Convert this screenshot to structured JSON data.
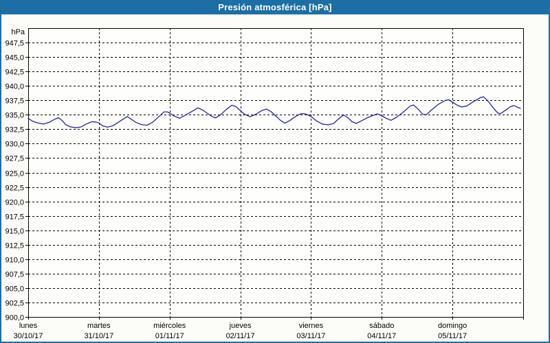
{
  "window": {
    "title": "Presión atmosférica [hPa]"
  },
  "colors": {
    "titlebar_bg": "#1c6ea5",
    "titlebar_text": "#ffffff",
    "frame_border": "#1c6ea5",
    "page_bg": "#fcfdf8",
    "plot_bg": "#fefefc",
    "plot_border": "#000000",
    "grid": "#000000",
    "tick": "#000000",
    "label_text": "#000000",
    "series_line": "#2323a5"
  },
  "chart_data": {
    "type": "line",
    "title": "Presión atmosférica [hPa]",
    "ylabel": "hPa",
    "xlabel": "",
    "ylim": [
      900,
      950
    ],
    "y_tick_step": 2.5,
    "grid": "dashed",
    "legend_position": "none",
    "y_tick_labels": [
      "947,5",
      "945,0",
      "942,5",
      "940,0",
      "937,5",
      "935,0",
      "932,5",
      "930,0",
      "927,5",
      "925,0",
      "922,5",
      "920,0",
      "917,5",
      "915,0",
      "912,5",
      "910,0",
      "907,5",
      "905,0",
      "902,5",
      "900,0"
    ],
    "y_tick_values": [
      947.5,
      945.0,
      942.5,
      940.0,
      937.5,
      935.0,
      932.5,
      930.0,
      927.5,
      925.0,
      922.5,
      920.0,
      917.5,
      915.0,
      912.5,
      910.0,
      907.5,
      905.0,
      902.5,
      900.0
    ],
    "x_days": [
      {
        "name": "lunes",
        "date": "30/10/17"
      },
      {
        "name": "martes",
        "date": "31/10/17"
      },
      {
        "name": "miércoles",
        "date": "01/11/17"
      },
      {
        "name": "jueves",
        "date": "02/11/17"
      },
      {
        "name": "viernes",
        "date": "03/11/17"
      },
      {
        "name": "sábado",
        "date": "04/11/17"
      },
      {
        "name": "domingo",
        "date": "05/11/17"
      }
    ],
    "series": [
      {
        "name": "Presión atmosférica",
        "unit": "hPa",
        "points": [
          [
            0.0,
            934.4
          ],
          [
            0.06,
            933.9
          ],
          [
            0.13,
            933.6
          ],
          [
            0.22,
            933.4
          ],
          [
            0.3,
            933.7
          ],
          [
            0.37,
            934.2
          ],
          [
            0.43,
            934.5
          ],
          [
            0.48,
            934.0
          ],
          [
            0.53,
            933.3
          ],
          [
            0.6,
            932.9
          ],
          [
            0.68,
            932.75
          ],
          [
            0.75,
            932.9
          ],
          [
            0.82,
            933.4
          ],
          [
            0.9,
            933.8
          ],
          [
            0.95,
            933.75
          ],
          [
            1.0,
            933.6
          ],
          [
            1.05,
            933.1
          ],
          [
            1.12,
            932.85
          ],
          [
            1.2,
            933.1
          ],
          [
            1.3,
            933.9
          ],
          [
            1.4,
            934.7
          ],
          [
            1.46,
            934.2
          ],
          [
            1.52,
            933.7
          ],
          [
            1.6,
            933.3
          ],
          [
            1.68,
            933.2
          ],
          [
            1.76,
            933.7
          ],
          [
            1.84,
            934.6
          ],
          [
            1.92,
            935.5
          ],
          [
            1.97,
            935.5
          ],
          [
            2.0,
            935.3
          ],
          [
            2.06,
            934.8
          ],
          [
            2.14,
            934.4
          ],
          [
            2.22,
            934.9
          ],
          [
            2.32,
            935.6
          ],
          [
            2.4,
            936.2
          ],
          [
            2.47,
            935.8
          ],
          [
            2.54,
            935.2
          ],
          [
            2.6,
            934.7
          ],
          [
            2.65,
            934.45
          ],
          [
            2.72,
            935.0
          ],
          [
            2.8,
            935.9
          ],
          [
            2.88,
            936.65
          ],
          [
            2.94,
            936.4
          ],
          [
            3.0,
            935.7
          ],
          [
            3.06,
            935.1
          ],
          [
            3.14,
            934.65
          ],
          [
            3.22,
            935.1
          ],
          [
            3.3,
            935.7
          ],
          [
            3.37,
            936.0
          ],
          [
            3.44,
            935.5
          ],
          [
            3.5,
            934.8
          ],
          [
            3.57,
            934.0
          ],
          [
            3.63,
            933.55
          ],
          [
            3.7,
            934.0
          ],
          [
            3.78,
            934.7
          ],
          [
            3.86,
            935.2
          ],
          [
            3.92,
            935.15
          ],
          [
            4.0,
            934.7
          ],
          [
            4.08,
            933.9
          ],
          [
            4.16,
            933.4
          ],
          [
            4.24,
            933.25
          ],
          [
            4.32,
            933.5
          ],
          [
            4.4,
            934.4
          ],
          [
            4.46,
            934.95
          ],
          [
            4.52,
            934.5
          ],
          [
            4.58,
            933.8
          ],
          [
            4.64,
            933.5
          ],
          [
            4.72,
            934.0
          ],
          [
            4.8,
            934.5
          ],
          [
            4.88,
            934.9
          ],
          [
            4.94,
            935.15
          ],
          [
            5.0,
            934.85
          ],
          [
            5.06,
            934.4
          ],
          [
            5.13,
            934.05
          ],
          [
            5.2,
            934.5
          ],
          [
            5.3,
            935.4
          ],
          [
            5.4,
            936.5
          ],
          [
            5.45,
            936.7
          ],
          [
            5.52,
            935.9
          ],
          [
            5.58,
            935.1
          ],
          [
            5.63,
            935.0
          ],
          [
            5.7,
            935.8
          ],
          [
            5.8,
            936.8
          ],
          [
            5.9,
            937.5
          ],
          [
            5.95,
            937.6
          ],
          [
            6.0,
            937.2
          ],
          [
            6.06,
            936.7
          ],
          [
            6.13,
            936.35
          ],
          [
            6.2,
            936.5
          ],
          [
            6.3,
            937.3
          ],
          [
            6.4,
            938.0
          ],
          [
            6.44,
            938.1
          ],
          [
            6.5,
            937.4
          ],
          [
            6.57,
            936.3
          ],
          [
            6.64,
            935.3
          ],
          [
            6.68,
            935.2
          ],
          [
            6.74,
            935.7
          ],
          [
            6.82,
            936.4
          ],
          [
            6.87,
            936.6
          ],
          [
            6.92,
            936.3
          ],
          [
            6.96,
            936.1
          ]
        ]
      }
    ]
  }
}
